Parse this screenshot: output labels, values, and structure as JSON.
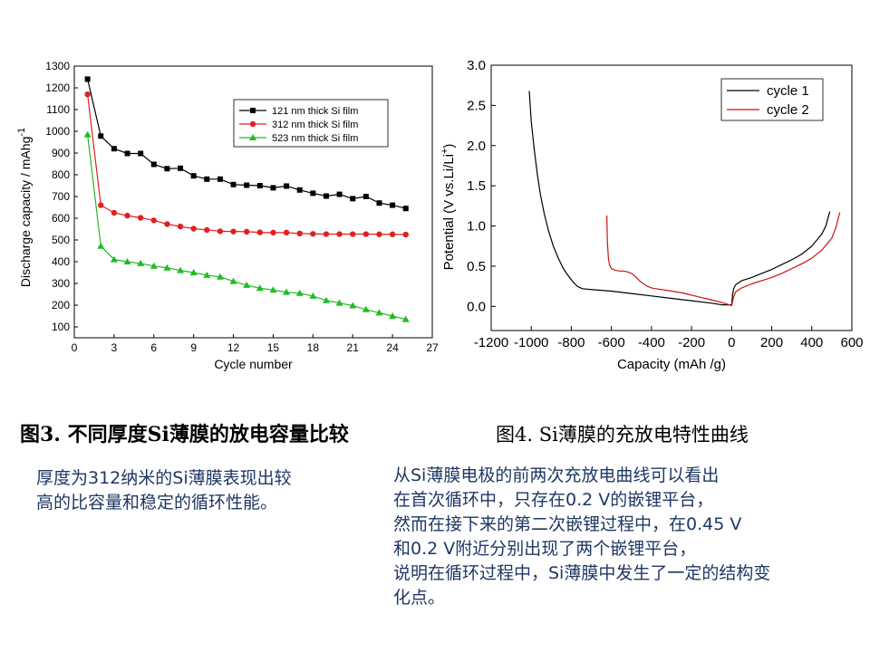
{
  "chart_data": [
    {
      "type": "line",
      "xlabel": "Cycle number",
      "ylabel": "Discharge capacity / mAhg",
      "ylabel_sup": "-1",
      "xlim": [
        0,
        27
      ],
      "ylim": [
        50,
        1300
      ],
      "xticks": [
        0,
        3,
        6,
        9,
        12,
        15,
        18,
        21,
        24,
        27
      ],
      "yticks": [
        100,
        200,
        300,
        400,
        500,
        600,
        700,
        800,
        900,
        1000,
        1100,
        1200,
        1300
      ],
      "legend": "top-right",
      "x": [
        1,
        2,
        3,
        4,
        5,
        6,
        7,
        8,
        9,
        10,
        11,
        12,
        13,
        14,
        15,
        16,
        17,
        18,
        19,
        20,
        21,
        22,
        23,
        24,
        25
      ],
      "series": [
        {
          "name": "121 nm thick Si film",
          "color": "#000000",
          "marker": "square",
          "values": [
            1240,
            978,
            920,
            898,
            898,
            848,
            828,
            830,
            795,
            780,
            780,
            755,
            752,
            750,
            740,
            748,
            730,
            715,
            702,
            710,
            690,
            700,
            670,
            660,
            645
          ]
        },
        {
          "name": "312 nm thick Si film",
          "color": "#e02020",
          "marker": "circle",
          "values": [
            1170,
            660,
            625,
            612,
            602,
            590,
            573,
            562,
            552,
            546,
            540,
            539,
            538,
            535,
            534,
            534,
            530,
            528,
            527,
            527,
            527,
            527,
            526,
            526,
            525
          ]
        },
        {
          "name": "523 nm thick Si film",
          "color": "#22bb22",
          "marker": "triangle",
          "values": [
            985,
            472,
            410,
            400,
            392,
            380,
            372,
            360,
            350,
            338,
            330,
            310,
            292,
            278,
            270,
            260,
            255,
            242,
            222,
            210,
            198,
            180,
            165,
            150,
            135
          ]
        }
      ]
    },
    {
      "type": "line",
      "xlabel": "Capacity (mAh /g)",
      "ylabel_main": "Potential (V vs.Li/Li",
      "ylabel_sup": "+",
      "ylabel_end": ")",
      "xlim": [
        -1200,
        600
      ],
      "ylim": [
        -0.3,
        3.0
      ],
      "xticks": [
        -1200,
        -1000,
        -800,
        -600,
        -400,
        -200,
        0,
        200,
        400,
        600
      ],
      "yticks": [
        0.0,
        0.5,
        1.0,
        1.5,
        2.0,
        2.5,
        3.0
      ],
      "legend": "top-right",
      "series": [
        {
          "name": "cycle 1",
          "color": "#000000",
          "x": [
            -1010,
            -1000,
            -985,
            -970,
            -955,
            -935,
            -915,
            -890,
            -865,
            -840,
            -815,
            -790,
            -770,
            -745,
            -700,
            -600,
            -500,
            -400,
            -300,
            -200,
            -100,
            -50,
            0,
            5,
            10,
            20,
            50,
            100,
            150,
            200,
            250,
            300,
            350,
            400,
            450,
            470,
            490
          ],
          "y": [
            2.68,
            2.3,
            1.95,
            1.65,
            1.4,
            1.15,
            0.95,
            0.75,
            0.6,
            0.47,
            0.38,
            0.3,
            0.25,
            0.22,
            0.21,
            0.19,
            0.16,
            0.13,
            0.1,
            0.07,
            0.04,
            0.02,
            0.02,
            0.15,
            0.22,
            0.27,
            0.32,
            0.36,
            0.41,
            0.46,
            0.52,
            0.58,
            0.65,
            0.75,
            0.9,
            1.0,
            1.18
          ]
        },
        {
          "name": "cycle 2",
          "color": "#cc1111",
          "x": [
            -623,
            -620,
            -615,
            -610,
            -600,
            -580,
            -560,
            -540,
            -520,
            -500,
            -480,
            -460,
            -440,
            -420,
            -400,
            -380,
            -350,
            -300,
            -250,
            -200,
            -150,
            -100,
            -50,
            0,
            10,
            20,
            50,
            100,
            150,
            200,
            250,
            300,
            350,
            400,
            450,
            500,
            520,
            540
          ],
          "y": [
            1.13,
            0.8,
            0.6,
            0.52,
            0.47,
            0.45,
            0.44,
            0.44,
            0.43,
            0.41,
            0.37,
            0.32,
            0.28,
            0.25,
            0.23,
            0.22,
            0.21,
            0.19,
            0.17,
            0.14,
            0.11,
            0.08,
            0.05,
            0.01,
            0.12,
            0.18,
            0.23,
            0.28,
            0.32,
            0.36,
            0.41,
            0.47,
            0.53,
            0.6,
            0.7,
            0.85,
            0.98,
            1.17
          ]
        }
      ]
    }
  ],
  "captions": {
    "fig3": "图3. 不同厚度Si薄膜的放电容量比较",
    "fig4": "图4.  Si薄膜的充放电特性曲线"
  },
  "descriptions": {
    "fig3_lines": [
      "厚度为312纳米的Si薄膜表现出较",
      "高的比容量和稳定的循环性能。"
    ],
    "fig4_lines": [
      "从Si薄膜电极的前两次充放电曲线可以看出",
      "在首次循环中，只存在0.2 V的嵌锂平台，",
      "然而在接下来的第二次嵌锂过程中，在0.45 V",
      "和0.2 V附近分别出现了两个嵌锂平台，",
      "说明在循环过程中，Si薄膜中发生了一定的结构变",
      "化点。"
    ]
  }
}
